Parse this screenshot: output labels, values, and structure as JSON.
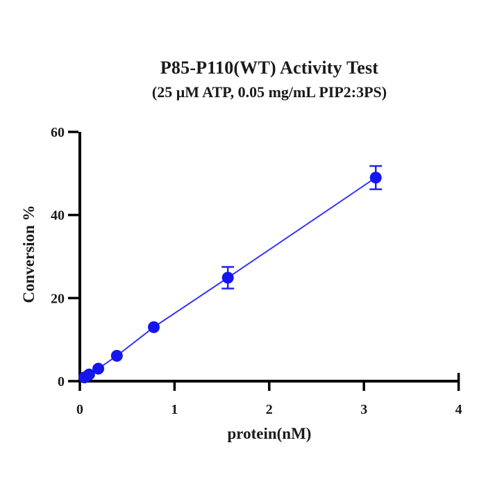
{
  "chart_data": {
    "type": "scatter",
    "title": "P85-P110(WT) Activity Test",
    "subtitle": "(25 μM ATP, 0.05 mg/mL PIP2:3PS)",
    "xlabel": "protein(nM)",
    "ylabel": "Conversion %",
    "x": [
      0.049,
      0.098,
      0.195,
      0.391,
      0.781,
      1.563,
      3.125
    ],
    "y": [
      0.9,
      1.6,
      3.0,
      6.1,
      13.0,
      24.9,
      49.0
    ],
    "yerr": [
      0.2,
      0.25,
      0.3,
      0.4,
      0.5,
      2.6,
      2.8
    ],
    "x_ticks": [
      0,
      1,
      2,
      3,
      4
    ],
    "y_ticks": [
      0,
      20,
      40,
      60
    ],
    "xlim": [
      0,
      4
    ],
    "ylim": [
      0,
      60
    ],
    "grid": "off",
    "legend": "none",
    "marker_color": "#1515ef",
    "line_color": "#3333ff",
    "errorbar_color": "#2222f0",
    "axis_color": "#000000"
  }
}
